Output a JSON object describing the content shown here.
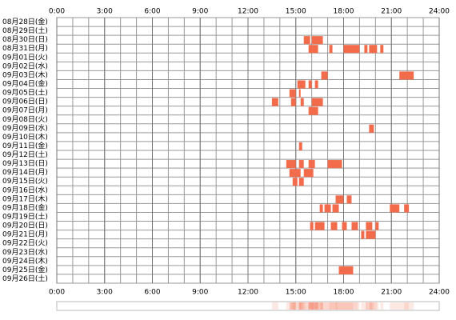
{
  "chart_data": {
    "type": "timeline",
    "categories": [
      "08月28日(金)",
      "08月29日(土)",
      "08月30日(日)",
      "08月31日(月)",
      "09月01日(火)",
      "09月02日(水)",
      "09月03日(木)",
      "09月04日(金)",
      "09月05日(土)",
      "09月06日(日)",
      "09月07日(月)",
      "09月08日(火)",
      "09月09日(水)",
      "09月10日(木)",
      "09月11日(金)",
      "09月12日(土)",
      "09月13日(日)",
      "09月14日(月)",
      "09月15日(火)",
      "09月16日(水)",
      "09月17日(木)",
      "09月18日(金)",
      "09月19日(土)",
      "09月20日(日)",
      "09月21日(月)",
      "09月22日(火)",
      "09月23日(水)",
      "09月24日(木)",
      "09月25日(金)",
      "09月26日(土)"
    ],
    "intervals": [
      [],
      [],
      [
        [
          15.5,
          15.9
        ],
        [
          16.0,
          16.7
        ]
      ],
      [
        [
          15.8,
          16.4
        ],
        [
          17.1,
          17.3
        ],
        [
          18.0,
          19.0
        ],
        [
          19.3,
          19.5
        ],
        [
          19.6,
          20.1
        ],
        [
          20.3,
          20.5
        ]
      ],
      [],
      [],
      [
        [
          16.6,
          17.0
        ],
        [
          21.5,
          22.4
        ]
      ],
      [
        [
          15.1,
          15.6
        ],
        [
          15.8,
          16.0
        ],
        [
          16.2,
          16.4
        ]
      ],
      [
        [
          14.6,
          15.0
        ],
        [
          15.2,
          15.3
        ]
      ],
      [
        [
          13.5,
          13.9
        ],
        [
          14.7,
          15.0
        ],
        [
          15.3,
          15.5
        ],
        [
          16.0,
          16.7
        ]
      ],
      [
        [
          15.8,
          16.4
        ]
      ],
      [],
      [
        [
          19.6,
          19.9
        ]
      ],
      [],
      [
        [
          15.2,
          15.4
        ]
      ],
      [],
      [
        [
          14.4,
          15.0
        ],
        [
          15.2,
          15.5
        ],
        [
          15.8,
          16.2
        ],
        [
          17.0,
          17.9
        ]
      ],
      [
        [
          14.6,
          15.3
        ],
        [
          15.5,
          16.1
        ]
      ],
      [
        [
          14.8,
          15.1
        ],
        [
          15.2,
          15.5
        ]
      ],
      [],
      [
        [
          17.5,
          18.0
        ],
        [
          18.2,
          18.5
        ]
      ],
      [
        [
          16.5,
          16.7
        ],
        [
          16.8,
          17.2
        ],
        [
          17.3,
          17.7
        ],
        [
          20.9,
          21.5
        ],
        [
          21.8,
          22.1
        ]
      ],
      [],
      [
        [
          15.9,
          16.1
        ],
        [
          16.2,
          16.8
        ],
        [
          17.2,
          17.6
        ],
        [
          17.9,
          18.2
        ],
        [
          18.5,
          18.9
        ],
        [
          19.4,
          19.8
        ],
        [
          20.0,
          20.2
        ]
      ],
      [
        [
          19.1,
          19.3
        ],
        [
          19.4,
          20.0
        ]
      ],
      [],
      [],
      [],
      [
        [
          17.7,
          18.6
        ]
      ],
      []
    ],
    "color": "#f26b4a",
    "xlim": [
      0,
      24
    ],
    "xticks": [
      {
        "value": 0,
        "label": "0:00"
      },
      {
        "value": 3,
        "label": "3:00"
      },
      {
        "value": 6,
        "label": "6:00"
      },
      {
        "value": 9,
        "label": "9:00"
      },
      {
        "value": 12,
        "label": "12:00"
      },
      {
        "value": 15,
        "label": "15:00"
      },
      {
        "value": 18,
        "label": "18:00"
      },
      {
        "value": 21,
        "label": "21:00"
      },
      {
        "value": 24,
        "label": "24:00"
      }
    ],
    "grid": true
  }
}
